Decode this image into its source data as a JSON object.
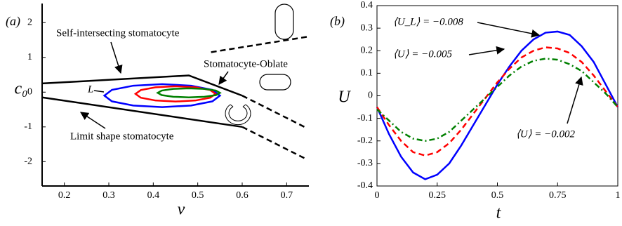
{
  "chart_data": [
    {
      "type": "line",
      "panel_label": "(a)",
      "x_label": "v",
      "y_label": "c₀",
      "xlim": [
        0.15,
        0.75
      ],
      "xticks": [
        0.2,
        0.3,
        0.4,
        0.5,
        0.6,
        0.7
      ],
      "ylim": [
        -2.7,
        2.55
      ],
      "yticks": [
        -2,
        -1,
        0,
        1,
        2
      ],
      "annotations": [
        "Self-intersecting stomatocyte",
        "Stomatocyte-Oblate",
        "Limit shape stomatocyte",
        "L"
      ],
      "series": [
        {
          "color": "#000000",
          "line_style": "solid",
          "x": [
            0.15,
            0.48,
            0.6
          ],
          "values": [
            0.25,
            0.48,
            -0.1
          ]
        },
        {
          "color": "#000000",
          "line_style": "dashed",
          "x": [
            0.6,
            0.74
          ],
          "values": [
            -0.1,
            -1.0
          ]
        },
        {
          "color": "#000000",
          "line_style": "dashed",
          "x": [
            0.53,
            0.75
          ],
          "values": [
            1.15,
            1.6
          ]
        },
        {
          "color": "#000000",
          "line_style": "solid",
          "x": [
            0.15,
            0.6
          ],
          "values": [
            -0.15,
            -1.0
          ]
        },
        {
          "color": "#000000",
          "line_style": "dashed",
          "x": [
            0.6,
            0.74
          ],
          "values": [
            -1.0,
            -1.9
          ]
        },
        {
          "color": "#0000ff",
          "line_style": "solid",
          "closed": true,
          "x": [
            0.55,
            0.533,
            0.485,
            0.42,
            0.355,
            0.307,
            0.29,
            0.307,
            0.355,
            0.42,
            0.485,
            0.533
          ],
          "values": [
            -0.1,
            0.065,
            0.186,
            0.23,
            0.186,
            0.065,
            -0.1,
            -0.265,
            -0.386,
            -0.43,
            -0.386,
            -0.265
          ]
        },
        {
          "color": "#ff0000",
          "line_style": "solid",
          "closed": true,
          "x": [
            0.54,
            0.528,
            0.495,
            0.45,
            0.405,
            0.372,
            0.36,
            0.372,
            0.405,
            0.45,
            0.495,
            0.528
          ],
          "values": [
            -0.05,
            0.06,
            0.14,
            0.17,
            0.14,
            0.06,
            -0.05,
            -0.16,
            -0.24,
            -0.27,
            -0.24,
            -0.16
          ]
        },
        {
          "color": "#008000",
          "line_style": "solid",
          "closed": true,
          "x": [
            0.55,
            0.541,
            0.515,
            0.48,
            0.445,
            0.419,
            0.41,
            0.419,
            0.445,
            0.48,
            0.515,
            0.541
          ],
          "values": [
            -0.02,
            0.045,
            0.093,
            0.11,
            0.093,
            0.045,
            -0.02,
            -0.085,
            -0.133,
            -0.15,
            -0.133,
            -0.085
          ]
        }
      ]
    },
    {
      "type": "line",
      "panel_label": "(b)",
      "x_label": "t",
      "y_label": "U",
      "xlim": [
        0,
        1
      ],
      "xticks": [
        0,
        0.25,
        0.5,
        0.75,
        1
      ],
      "ylim": [
        -0.4,
        0.4
      ],
      "yticks": [
        -0.4,
        -0.3,
        -0.2,
        -0.1,
        0,
        0.1,
        0.2,
        0.3,
        0.4
      ],
      "annotations": [
        "⟨U_L⟩ = −0.008",
        "⟨U⟩ = −0.005",
        "⟨U⟩ = −0.002"
      ],
      "x": [
        0,
        0.05,
        0.1,
        0.15,
        0.2,
        0.25,
        0.3,
        0.35,
        0.4,
        0.45,
        0.5,
        0.55,
        0.6,
        0.65,
        0.7,
        0.75,
        0.8,
        0.85,
        0.9,
        0.95,
        1
      ],
      "series": [
        {
          "color": "#0000ff",
          "line_style": "solid",
          "values": [
            -0.05,
            -0.17,
            -0.27,
            -0.34,
            -0.37,
            -0.35,
            -0.3,
            -0.22,
            -0.13,
            -0.04,
            0.05,
            0.13,
            0.2,
            0.25,
            0.28,
            0.285,
            0.27,
            0.22,
            0.15,
            0.05,
            -0.05
          ]
        },
        {
          "color": "#ff0000",
          "line_style": "dashed",
          "values": [
            -0.05,
            -0.13,
            -0.2,
            -0.25,
            -0.265,
            -0.25,
            -0.21,
            -0.15,
            -0.08,
            -0.01,
            0.06,
            0.12,
            0.17,
            0.2,
            0.215,
            0.21,
            0.19,
            0.15,
            0.09,
            0.02,
            -0.05
          ]
        },
        {
          "color": "#008000",
          "line_style": "dashdot",
          "values": [
            -0.06,
            -0.11,
            -0.16,
            -0.19,
            -0.2,
            -0.19,
            -0.16,
            -0.11,
            -0.06,
            -0.01,
            0.04,
            0.09,
            0.13,
            0.155,
            0.165,
            0.16,
            0.14,
            0.11,
            0.06,
            0.01,
            -0.05
          ]
        }
      ]
    }
  ]
}
